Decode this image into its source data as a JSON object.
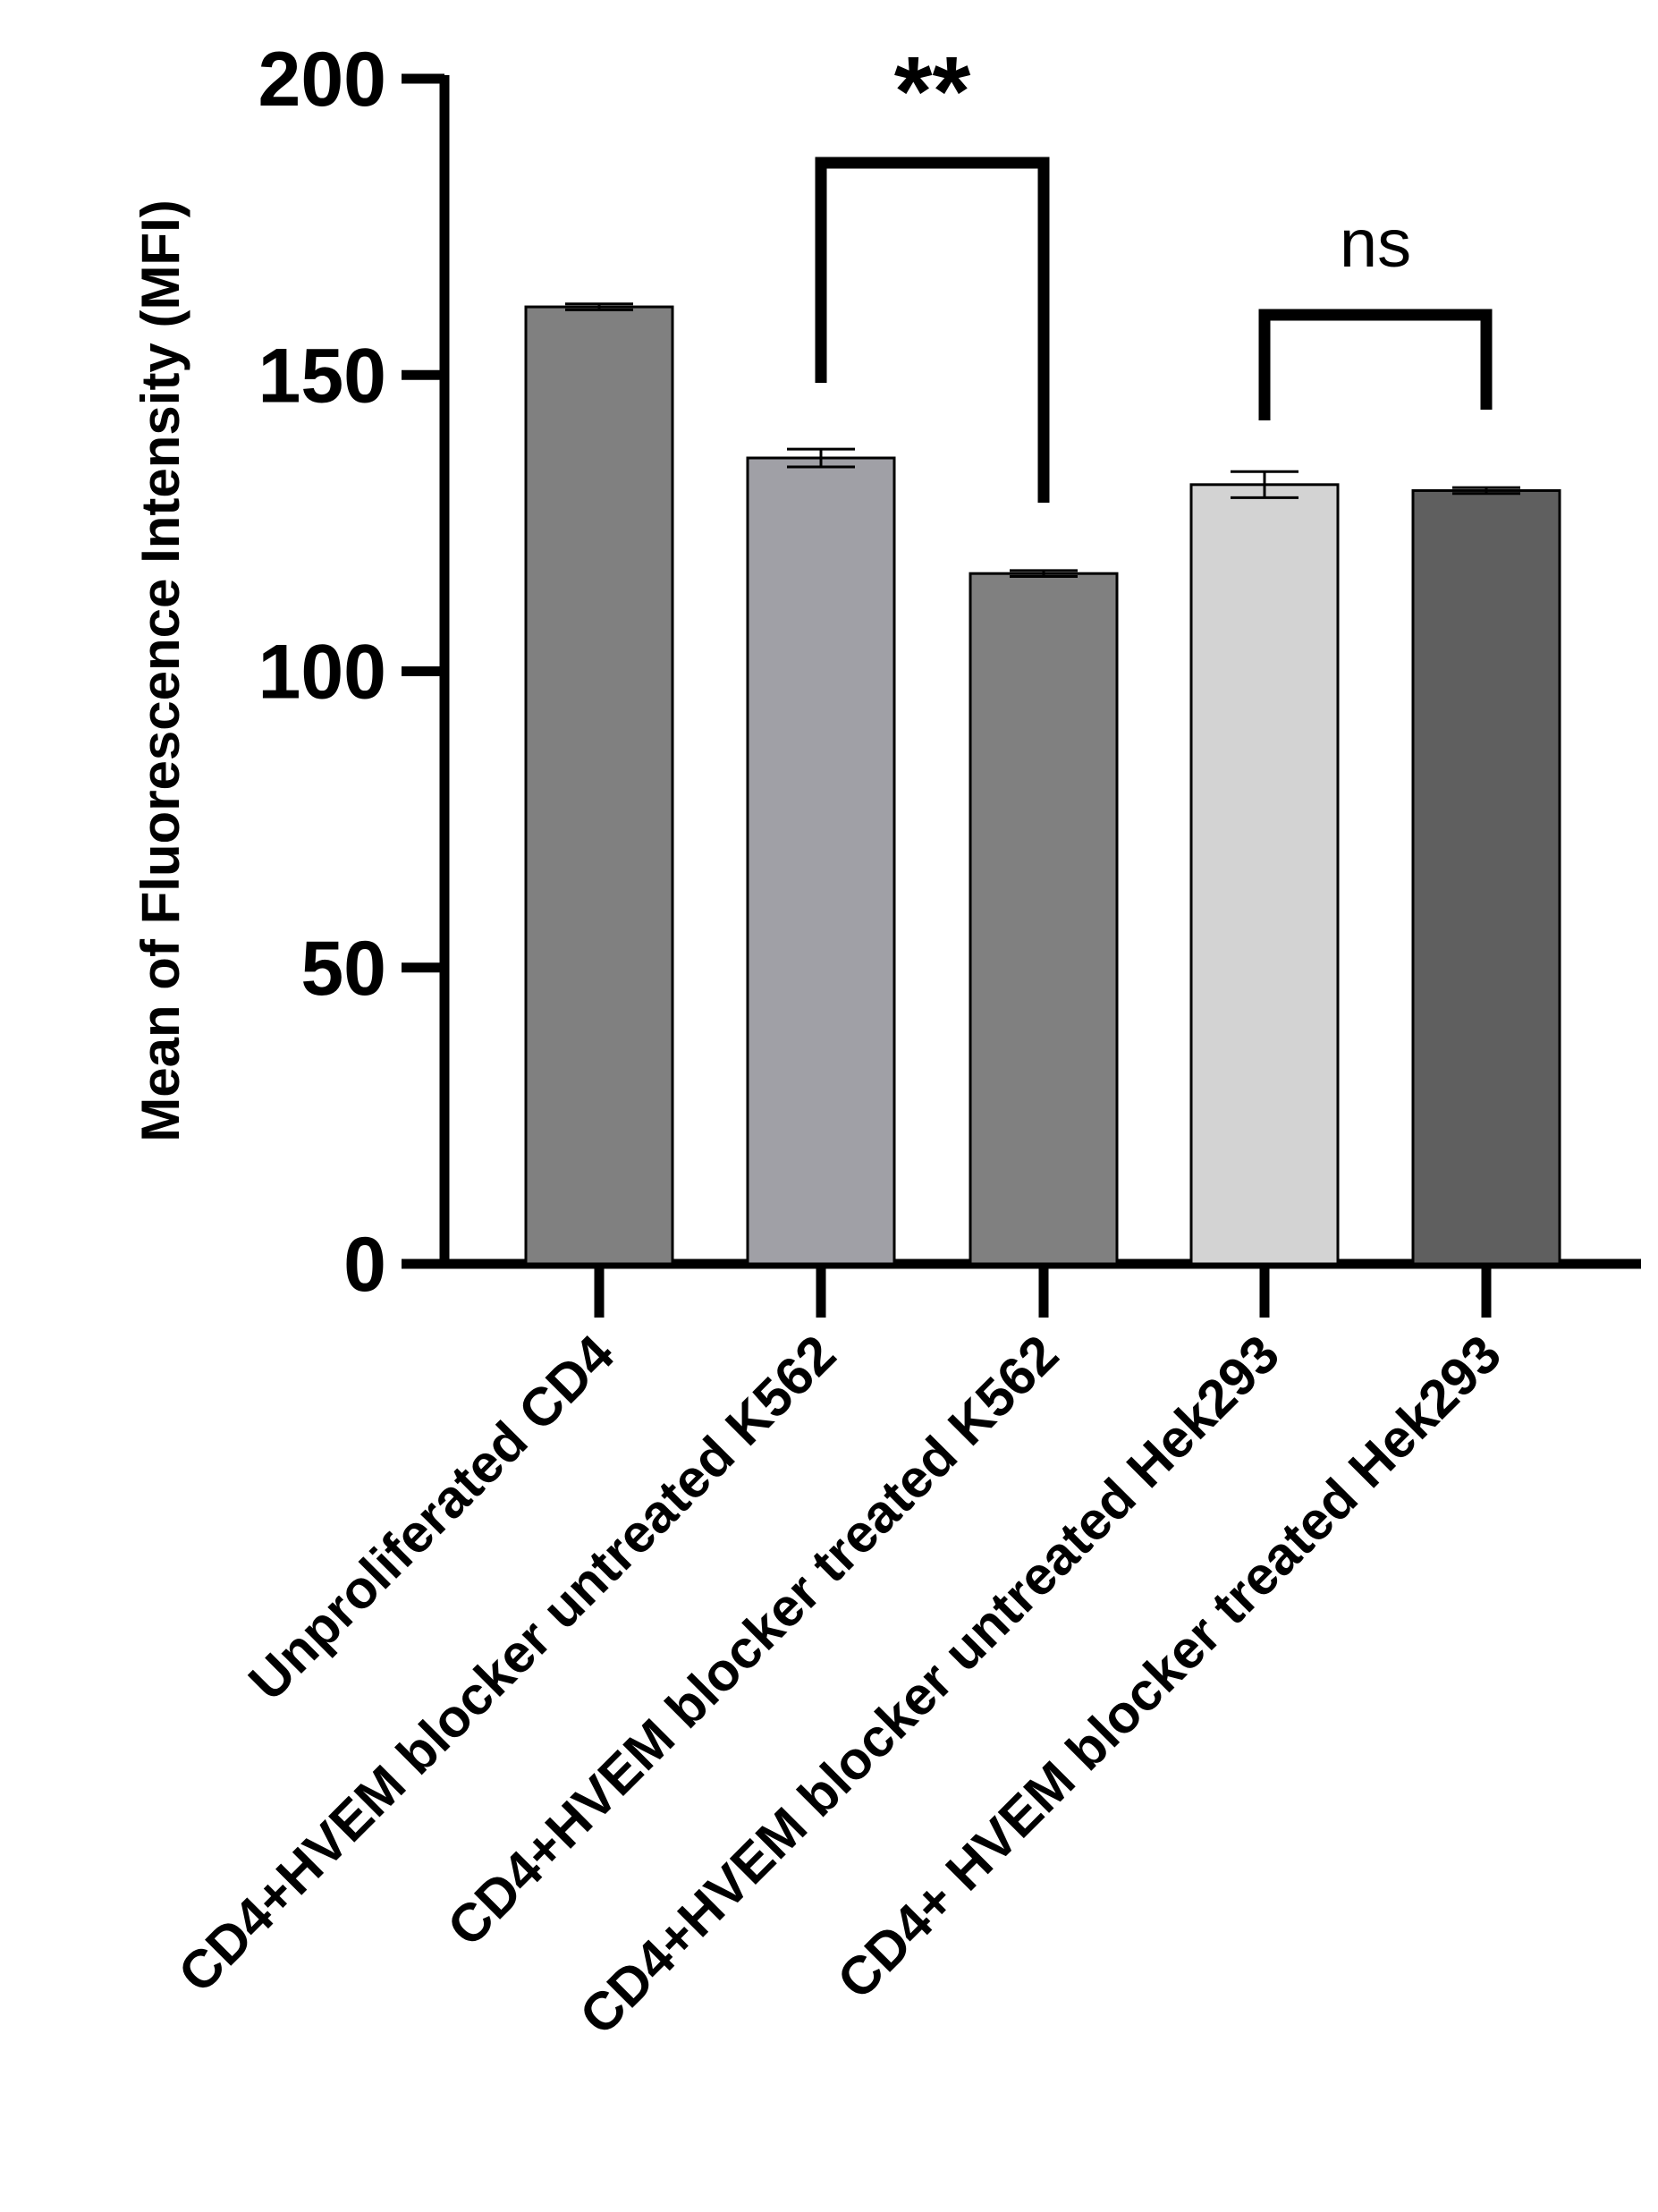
{
  "chart_data": {
    "type": "bar",
    "title": "",
    "xlabel": "",
    "ylabel": "Mean of Fluorescence Intensity (MFI)",
    "ylim": [
      0,
      200
    ],
    "yticks": [
      0,
      50,
      100,
      150,
      200
    ],
    "grid": false,
    "legend": "none",
    "categories": [
      "Unproliferated CD4",
      "CD4+HVEM blocker untreated K562",
      "CD4+HVEM blocker treated K562",
      "CD4+HVEM blocker untreated Hek293",
      "CD4+ HVEM blocker treated Hek293"
    ],
    "values": [
      161.5,
      136,
      116.5,
      131.5,
      130.5
    ],
    "errors": [
      0.5,
      1.5,
      0.5,
      2.2,
      0.5
    ],
    "colors": [
      "#808080",
      "#a0a0a6",
      "#808080",
      "#d3d3d3",
      "#5f5f5f"
    ],
    "significance": [
      {
        "from": 1,
        "to": 2,
        "label": "**"
      },
      {
        "from": 3,
        "to": 4,
        "label": "ns"
      }
    ]
  }
}
